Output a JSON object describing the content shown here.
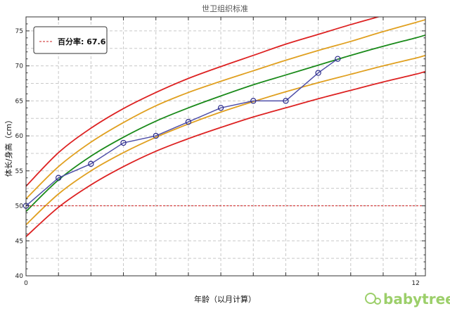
{
  "chart_data": {
    "type": "line",
    "title": "世卫组织标准",
    "xlabel": "年龄（以月计算）",
    "ylabel": "体长/身高（cm）",
    "xlim": [
      0,
      12.3
    ],
    "ylim": [
      40,
      77
    ],
    "x_ticks": [
      0,
      12
    ],
    "y_ticks": [
      40,
      45,
      50,
      55,
      60,
      65,
      70,
      75
    ],
    "grid": true,
    "legend": {
      "placement": "top-left",
      "entries": [
        {
          "label": "百分率: 67.6",
          "color": "#cc2222",
          "style": "dashed"
        }
      ]
    },
    "reference_line": {
      "y": 50,
      "color": "#cc2222",
      "style": "dashed"
    },
    "curves": [
      {
        "role": "upper-outer",
        "color": "#dd2222",
        "x": [
          0,
          1,
          2,
          3,
          4,
          5,
          6,
          7,
          8,
          9,
          10,
          11,
          12,
          12.3
        ],
        "y": [
          52.8,
          57.6,
          61.1,
          63.9,
          66.2,
          68.2,
          69.9,
          71.5,
          73.1,
          74.5,
          75.9,
          77.2,
          78.5,
          78.9
        ]
      },
      {
        "role": "upper-inner",
        "color": "#e0a020",
        "x": [
          0,
          1,
          2,
          3,
          4,
          5,
          6,
          7,
          8,
          9,
          10,
          11,
          12,
          12.3
        ],
        "y": [
          51.0,
          55.6,
          59.1,
          61.9,
          64.3,
          66.2,
          67.8,
          69.3,
          70.8,
          72.2,
          73.5,
          74.9,
          76.2,
          76.6
        ]
      },
      {
        "role": "median",
        "color": "#1a8a1a",
        "x": [
          0,
          1,
          2,
          3,
          4,
          5,
          6,
          7,
          8,
          9,
          10,
          11,
          12,
          12.3
        ],
        "y": [
          49.2,
          53.7,
          57.1,
          59.8,
          62.1,
          64.0,
          65.7,
          67.3,
          68.7,
          70.1,
          71.5,
          72.8,
          74.0,
          74.4
        ]
      },
      {
        "role": "lower-inner",
        "color": "#e0a020",
        "x": [
          0,
          1,
          2,
          3,
          4,
          5,
          6,
          7,
          8,
          9,
          10,
          11,
          12,
          12.3
        ],
        "y": [
          47.3,
          51.7,
          55.0,
          57.6,
          59.8,
          61.7,
          63.4,
          64.9,
          66.3,
          67.6,
          68.8,
          70.0,
          71.1,
          71.5
        ]
      },
      {
        "role": "lower-outer",
        "color": "#dd2222",
        "x": [
          0,
          1,
          2,
          3,
          4,
          5,
          6,
          7,
          8,
          9,
          10,
          11,
          12,
          12.3
        ],
        "y": [
          45.6,
          49.8,
          53.0,
          55.6,
          57.8,
          59.6,
          61.2,
          62.7,
          64.0,
          65.3,
          66.5,
          67.7,
          68.8,
          69.2
        ]
      }
    ],
    "series": [
      {
        "color": "#4f4fa8",
        "x": [
          0,
          1,
          2,
          3,
          4,
          5,
          6,
          7,
          8,
          9,
          9.6
        ],
        "y": [
          50,
          54,
          56,
          59,
          60,
          62,
          64,
          65,
          65,
          69,
          71
        ]
      }
    ]
  },
  "watermark": {
    "text": "babytree",
    "color": "#9ccf6a"
  }
}
